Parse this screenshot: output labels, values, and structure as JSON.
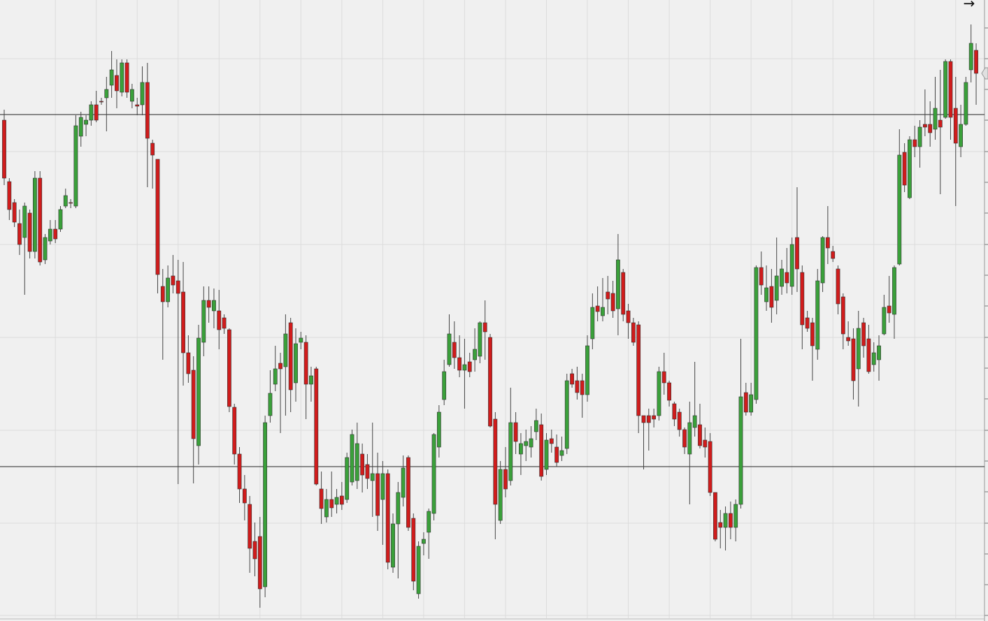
{
  "chart_data": {
    "type": "candlestick",
    "arrow": "→",
    "up_color": "#3aa03a",
    "down_color": "#d01c1c",
    "ylim": [
      0,
      889
    ],
    "yticks": [
      849,
      805,
      761,
      717,
      672,
      628,
      584,
      539,
      495,
      451,
      406,
      362,
      318,
      273,
      229,
      185,
      140,
      96,
      52,
      8
    ],
    "grid": true,
    "hlines": [
      725,
      221
    ],
    "open": [
      717,
      629,
      599,
      569,
      549,
      584,
      529,
      634,
      517,
      544,
      561,
      561,
      594,
      599,
      594,
      694,
      711,
      717,
      739,
      744,
      749,
      767,
      781,
      757,
      799,
      744,
      739,
      739,
      771,
      684,
      661,
      479,
      457,
      494,
      487,
      471,
      384,
      359,
      251,
      399,
      459,
      444,
      444,
      434,
      417,
      306,
      239,
      189,
      167,
      114,
      121,
      49,
      294,
      339,
      369,
      364,
      427,
      341,
      399,
      399,
      339,
      361,
      189,
      149,
      174,
      167,
      179,
      174,
      199,
      201,
      239,
      224,
      201,
      211,
      174,
      211,
      77,
      139,
      177,
      234,
      147,
      39,
      111,
      127,
      154,
      249,
      317,
      367,
      399,
      377,
      359,
      371,
      374,
      379,
      427,
      406,
      289,
      144,
      217,
      201,
      284,
      239,
      251,
      249,
      271,
      281,
      217,
      261,
      249,
      237,
      247,
      354,
      344,
      344,
      324,
      404,
      451,
      437,
      471,
      469,
      447,
      499,
      444,
      427,
      424,
      294,
      294,
      294,
      294,
      357,
      341,
      311,
      299,
      274,
      239,
      277,
      281,
      259,
      257,
      184,
      141,
      134,
      154,
      134,
      167,
      327,
      299,
      317,
      506,
      457,
      479,
      459,
      479,
      499,
      479,
      549,
      499,
      434,
      427,
      389,
      484,
      549,
      529,
      504,
      464,
      406,
      404,
      361,
      427,
      404,
      367,
      374,
      411,
      451,
      439,
      511,
      671,
      606,
      689,
      679,
      711,
      711,
      704,
      717,
      721,
      801,
      734,
      679,
      711,
      789,
      817
    ],
    "high": [
      732,
      634,
      604,
      589,
      599,
      589,
      644,
      644,
      554,
      574,
      574,
      594,
      619,
      604,
      724,
      729,
      724,
      744,
      759,
      749,
      779,
      816,
      804,
      804,
      804,
      769,
      749,
      794,
      799,
      689,
      661,
      504,
      509,
      524,
      517,
      514,
      409,
      379,
      424,
      479,
      479,
      476,
      474,
      439,
      419,
      311,
      249,
      209,
      179,
      141,
      149,
      294,
      359,
      394,
      384,
      439,
      434,
      419,
      414,
      409,
      364,
      364,
      214,
      189,
      214,
      189,
      199,
      241,
      274,
      284,
      254,
      239,
      284,
      241,
      229,
      217,
      154,
      199,
      237,
      237,
      154,
      114,
      127,
      161,
      269,
      309,
      374,
      439,
      429,
      409,
      404,
      384,
      419,
      429,
      459,
      411,
      299,
      229,
      249,
      334,
      299,
      269,
      274,
      279,
      304,
      297,
      269,
      274,
      267,
      264,
      354,
      361,
      364,
      354,
      409,
      469,
      479,
      491,
      494,
      487,
      554,
      504,
      454,
      434,
      429,
      294,
      304,
      304,
      364,
      384,
      344,
      314,
      304,
      277,
      314,
      371,
      311,
      277,
      269,
      184,
      159,
      164,
      171,
      174,
      404,
      341,
      341,
      509,
      529,
      509,
      504,
      549,
      517,
      534,
      549,
      621,
      509,
      444,
      434,
      504,
      551,
      594,
      537,
      509,
      469,
      429,
      419,
      444,
      434,
      424,
      399,
      409,
      467,
      494,
      509,
      704,
      684,
      694,
      709,
      717,
      761,
      744,
      779,
      789,
      804,
      804,
      779,
      739,
      779,
      854,
      827
    ],
    "low": [
      624,
      574,
      564,
      524,
      467,
      519,
      519,
      509,
      511,
      539,
      541,
      557,
      591,
      591,
      591,
      679,
      694,
      709,
      714,
      739,
      701,
      749,
      734,
      751,
      749,
      734,
      724,
      724,
      621,
      619,
      469,
      374,
      449,
      469,
      196,
      337,
      341,
      197,
      224,
      379,
      427,
      419,
      389,
      411,
      299,
      224,
      169,
      144,
      69,
      64,
      19,
      34,
      284,
      329,
      269,
      294,
      299,
      314,
      389,
      289,
      314,
      194,
      139,
      141,
      149,
      154,
      159,
      169,
      194,
      189,
      184,
      189,
      149,
      129,
      109,
      74,
      69,
      61,
      164,
      129,
      44,
      32,
      94,
      89,
      144,
      234,
      309,
      364,
      361,
      349,
      304,
      349,
      357,
      369,
      374,
      277,
      117,
      139,
      177,
      194,
      239,
      209,
      229,
      234,
      259,
      201,
      209,
      241,
      221,
      229,
      239,
      334,
      317,
      291,
      314,
      389,
      429,
      429,
      439,
      434,
      409,
      429,
      404,
      394,
      269,
      217,
      244,
      277,
      287,
      324,
      307,
      279,
      264,
      239,
      167,
      264,
      247,
      234,
      179,
      114,
      104,
      101,
      117,
      114,
      161,
      294,
      294,
      311,
      467,
      444,
      427,
      439,
      467,
      469,
      467,
      471,
      389,
      414,
      344,
      374,
      471,
      511,
      514,
      439,
      389,
      394,
      317,
      307,
      377,
      354,
      357,
      344,
      409,
      427,
      404,
      509,
      614,
      604,
      664,
      649,
      694,
      679,
      689,
      611,
      719,
      689,
      594,
      664,
      709,
      771,
      739
    ],
    "close": [
      634,
      589,
      571,
      539,
      594,
      529,
      634,
      514,
      549,
      561,
      547,
      589,
      609,
      598,
      709,
      721,
      717,
      739,
      717,
      743,
      761,
      789,
      759,
      799,
      757,
      761,
      737,
      771,
      691,
      667,
      496,
      457,
      491,
      481,
      469,
      384,
      354,
      261,
      405,
      459,
      449,
      459,
      417,
      419,
      307,
      239,
      189,
      169,
      104,
      89,
      46,
      284,
      326,
      361,
      361,
      411,
      331,
      397,
      405,
      339,
      351,
      196,
      161,
      174,
      162,
      177,
      167,
      234,
      267,
      254,
      209,
      204,
      211,
      151,
      211,
      84,
      139,
      184,
      219,
      134,
      57,
      107,
      117,
      157,
      267,
      299,
      357,
      411,
      377,
      359,
      367,
      357,
      389,
      427,
      414,
      279,
      167,
      217,
      189,
      284,
      257,
      254,
      257,
      261,
      287,
      207,
      259,
      254,
      227,
      244,
      344,
      339,
      327,
      324,
      394,
      449,
      443,
      449,
      461,
      444,
      517,
      439,
      427,
      399,
      294,
      284,
      284,
      289,
      357,
      341,
      316,
      289,
      274,
      249,
      284,
      294,
      251,
      249,
      184,
      117,
      134,
      154,
      134,
      167,
      321,
      299,
      324,
      506,
      481,
      477,
      449,
      494,
      504,
      484,
      539,
      504,
      424,
      419,
      394,
      487,
      549,
      534,
      519,
      454,
      411,
      401,
      344,
      419,
      394,
      357,
      384,
      394,
      449,
      441,
      506,
      667,
      624,
      689,
      679,
      707,
      707,
      699,
      734,
      707,
      801,
      721,
      684,
      711,
      771,
      827,
      784
    ]
  }
}
